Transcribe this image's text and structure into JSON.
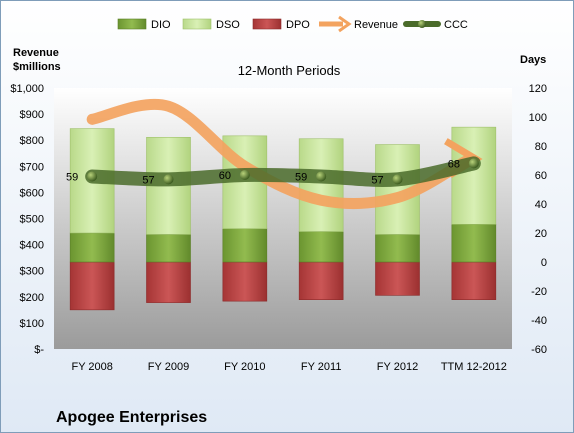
{
  "company": "Apogee Enterprises",
  "colors": {
    "dio": "#7aa33a",
    "dso": "#c9e59a",
    "dpo": "#b84141",
    "revenue": "#f3a35f",
    "ccc": "#4a6b2a"
  },
  "chart_data": {
    "type": "bar",
    "title": "12-Month Periods",
    "categories": [
      "FY 2008",
      "FY 2009",
      "FY 2010",
      "FY 2011",
      "FY 2012",
      "TTM 12-2012"
    ],
    "left_axis": {
      "label_line1": "Revenue",
      "label_line2": "$millions",
      "range": [
        0,
        1000
      ],
      "ticks": [
        "$-",
        "$100",
        "$200",
        "$300",
        "$400",
        "$500",
        "$600",
        "$700",
        "$800",
        "$900",
        "$1,000"
      ]
    },
    "right_axis": {
      "label": "Days",
      "range": [
        -60,
        120
      ],
      "ticks": [
        "-60",
        "-40",
        "-20",
        "0",
        "20",
        "40",
        "60",
        "80",
        "100",
        "120"
      ]
    },
    "legend": {
      "position": "top",
      "entries": [
        "DIO",
        "DSO",
        "DPO",
        "Revenue",
        "CCC"
      ]
    },
    "series": [
      {
        "name": "DIO",
        "kind": "stacked-bar-days",
        "values": [
          20,
          19,
          23,
          21,
          19,
          26
        ]
      },
      {
        "name": "DSO",
        "kind": "stacked-bar-days",
        "values": [
          72,
          67,
          64,
          64,
          62,
          67
        ]
      },
      {
        "name": "DPO",
        "kind": "negative-bar-days",
        "values": [
          -33,
          -28,
          -27,
          -26,
          -23,
          -26
        ]
      },
      {
        "name": "Revenue",
        "kind": "line-left-axis",
        "values": [
          880,
          930,
          700,
          570,
          580,
          720
        ]
      },
      {
        "name": "CCC",
        "kind": "line-right-axis",
        "values": [
          59,
          57,
          60,
          59,
          57,
          68
        ],
        "data_labels": [
          "59",
          "57",
          "60",
          "59",
          "57",
          "68"
        ]
      }
    ],
    "grid": false
  }
}
